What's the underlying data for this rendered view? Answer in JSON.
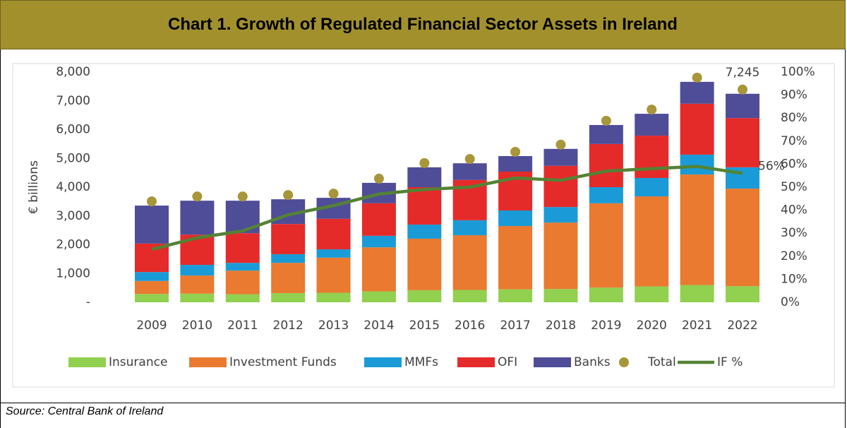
{
  "chart_data": {
    "type": "bar",
    "stacked": true,
    "title": "Chart 1. Growth of Regulated Financial Sector Assets in Ireland",
    "ylabel": "€ billions",
    "source": "Source: Central Bank of Ireland",
    "categories": [
      "2009",
      "2010",
      "2011",
      "2012",
      "2013",
      "2014",
      "2015",
      "2016",
      "2017",
      "2018",
      "2019",
      "2020",
      "2021",
      "2022"
    ],
    "series": [
      {
        "name": "Insurance",
        "color": "#92D050",
        "values": [
          290,
          300,
          280,
          320,
          330,
          380,
          420,
          430,
          450,
          460,
          510,
          550,
          600,
          560
        ]
      },
      {
        "name": "Investment Funds",
        "color": "#E97A30",
        "values": [
          450,
          630,
          820,
          1050,
          1220,
          1530,
          1790,
          1900,
          2200,
          2310,
          2930,
          3130,
          3840,
          3390
        ]
      },
      {
        "name": "MMFs",
        "color": "#1A9BD7",
        "values": [
          310,
          370,
          270,
          300,
          290,
          400,
          490,
          520,
          540,
          540,
          560,
          640,
          690,
          740
        ]
      },
      {
        "name": "OFI",
        "color": "#E52A2A",
        "values": [
          990,
          1050,
          1030,
          1050,
          1060,
          1130,
          1300,
          1400,
          1350,
          1430,
          1500,
          1470,
          1770,
          1710
        ]
      },
      {
        "name": "Banks",
        "color": "#4F4D98",
        "values": [
          1320,
          1180,
          1130,
          860,
          730,
          710,
          690,
          580,
          540,
          590,
          660,
          760,
          760,
          845
        ]
      },
      {
        "name": "Total",
        "type": "scatter",
        "color": "#A8963A",
        "values": [
          3360,
          3530,
          3530,
          3580,
          3630,
          4150,
          4690,
          4830,
          5080,
          5330,
          6160,
          6550,
          7660,
          7245
        ],
        "value_labels": [
          null,
          null,
          null,
          null,
          null,
          null,
          null,
          null,
          null,
          null,
          null,
          null,
          null,
          "7,245"
        ]
      },
      {
        "name": "IF %",
        "type": "line",
        "axis": "y2",
        "color": "#548235",
        "values": [
          23,
          28,
          31,
          38,
          42,
          47,
          49,
          50,
          54,
          53,
          57,
          58,
          59,
          56
        ],
        "value_labels": [
          null,
          null,
          null,
          null,
          null,
          null,
          null,
          null,
          null,
          null,
          null,
          null,
          null,
          "56%"
        ]
      }
    ],
    "ylim": [
      0,
      8000
    ],
    "yticks": [
      {
        "value": 0,
        "label": "-"
      },
      {
        "value": 1000,
        "label": "1,000"
      },
      {
        "value": 2000,
        "label": "2,000"
      },
      {
        "value": 3000,
        "label": "3,000"
      },
      {
        "value": 4000,
        "label": "4,000"
      },
      {
        "value": 5000,
        "label": "5,000"
      },
      {
        "value": 6000,
        "label": "6,000"
      },
      {
        "value": 7000,
        "label": "7,000"
      },
      {
        "value": 8000,
        "label": "8,000"
      }
    ],
    "y2lim": [
      0,
      100
    ],
    "y2ticks": [
      {
        "value": 0,
        "label": "0%"
      },
      {
        "value": 10,
        "label": "10%"
      },
      {
        "value": 20,
        "label": "20%"
      },
      {
        "value": 30,
        "label": "30%"
      },
      {
        "value": 40,
        "label": "40%"
      },
      {
        "value": 50,
        "label": "50%"
      },
      {
        "value": 60,
        "label": "60%"
      },
      {
        "value": 70,
        "label": "70%"
      },
      {
        "value": 80,
        "label": "80%"
      },
      {
        "value": 90,
        "label": "90%"
      },
      {
        "value": 100,
        "label": "100%"
      }
    ],
    "legend": "bottom",
    "grid": false
  }
}
